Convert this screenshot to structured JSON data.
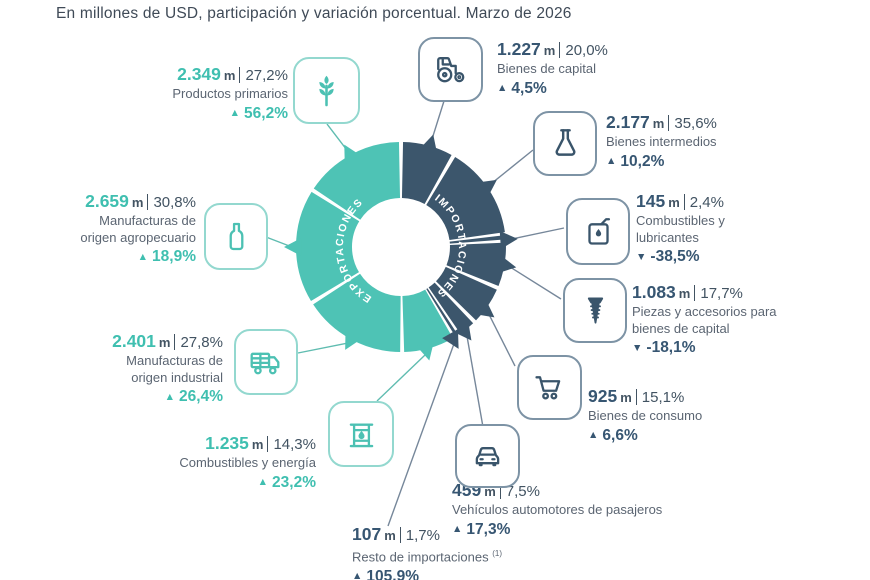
{
  "title": "En millones de USD, participación y variación porcentual. Marzo de 2026",
  "chart_data": {
    "type": "donut",
    "units": "millones de USD",
    "legend_position": "curved labels inside ring halves",
    "colors": {
      "exports": "#4EC3B5",
      "imports": "#3C566C"
    },
    "groups": [
      {
        "name": "EXPORTACIONES",
        "color": "#4EC3B5",
        "items": [
          {
            "key": "primarios",
            "label_lines": [
              "Productos primarios"
            ],
            "value": "2.349",
            "unit": "m",
            "share": "27,2%",
            "arrow": "▲",
            "change": "56,2%",
            "icon": "wheat-icon"
          },
          {
            "key": "agropecuario",
            "label_lines": [
              "Manufacturas de",
              "origen agropecuario"
            ],
            "value": "2.659",
            "unit": "m",
            "share": "30,8%",
            "arrow": "▲",
            "change": "18,9%",
            "icon": "bottle-icon"
          },
          {
            "key": "industrial",
            "label_lines": [
              "Manufacturas de",
              "origen industrial"
            ],
            "value": "2.401",
            "unit": "m",
            "share": "27,8%",
            "arrow": "▲",
            "change": "26,4%",
            "icon": "truck-icon"
          },
          {
            "key": "energia",
            "label_lines": [
              "Combustibles y energía"
            ],
            "value": "1.235",
            "unit": "m",
            "share": "14,3%",
            "arrow": "▲",
            "change": "23,2%",
            "icon": "oil-barrel-icon"
          }
        ]
      },
      {
        "name": "IMPORTACIONES",
        "color": "#3C566C",
        "items": [
          {
            "key": "capital",
            "label_lines": [
              "Bienes de capital"
            ],
            "value": "1.227",
            "unit": "m",
            "share": "20,0%",
            "arrow": "▲",
            "change": "4,5%",
            "icon": "tractor-icon"
          },
          {
            "key": "intermedios",
            "label_lines": [
              "Bienes intermedios"
            ],
            "value": "2.177",
            "unit": "m",
            "share": "35,6%",
            "arrow": "▲",
            "change": "10,2%",
            "icon": "flask-icon"
          },
          {
            "key": "lubricantes",
            "label_lines": [
              "Combustibles y",
              "lubricantes"
            ],
            "value": "145",
            "unit": "m",
            "share": "2,4%",
            "arrow": "▼",
            "change": "-38,5%",
            "icon": "oil-can-icon"
          },
          {
            "key": "piezas",
            "label_lines": [
              "Piezas y accesorios para",
              "bienes de capital"
            ],
            "value": "1.083",
            "unit": "m",
            "share": "17,7%",
            "arrow": "▼",
            "change": "-18,1%",
            "icon": "screw-icon"
          },
          {
            "key": "consumo",
            "label_lines": [
              "Bienes de consumo"
            ],
            "value": "925",
            "unit": "m",
            "share": "15,1%",
            "arrow": "▲",
            "change": "6,6%",
            "icon": "cart-icon"
          },
          {
            "key": "vehiculos",
            "label_lines": [
              "Vehículos automotores de pasajeros"
            ],
            "value": "459",
            "unit": "m",
            "share": "7,5%",
            "arrow": "▲",
            "change": "17,3%",
            "icon": "car-icon"
          },
          {
            "key": "resto",
            "label_lines": [
              "Resto de importaciones"
            ],
            "footnote": "(1)",
            "value": "107",
            "unit": "m",
            "share": "1,7%",
            "arrow": "▲",
            "change": "105,9%",
            "icon": null
          }
        ]
      }
    ]
  }
}
